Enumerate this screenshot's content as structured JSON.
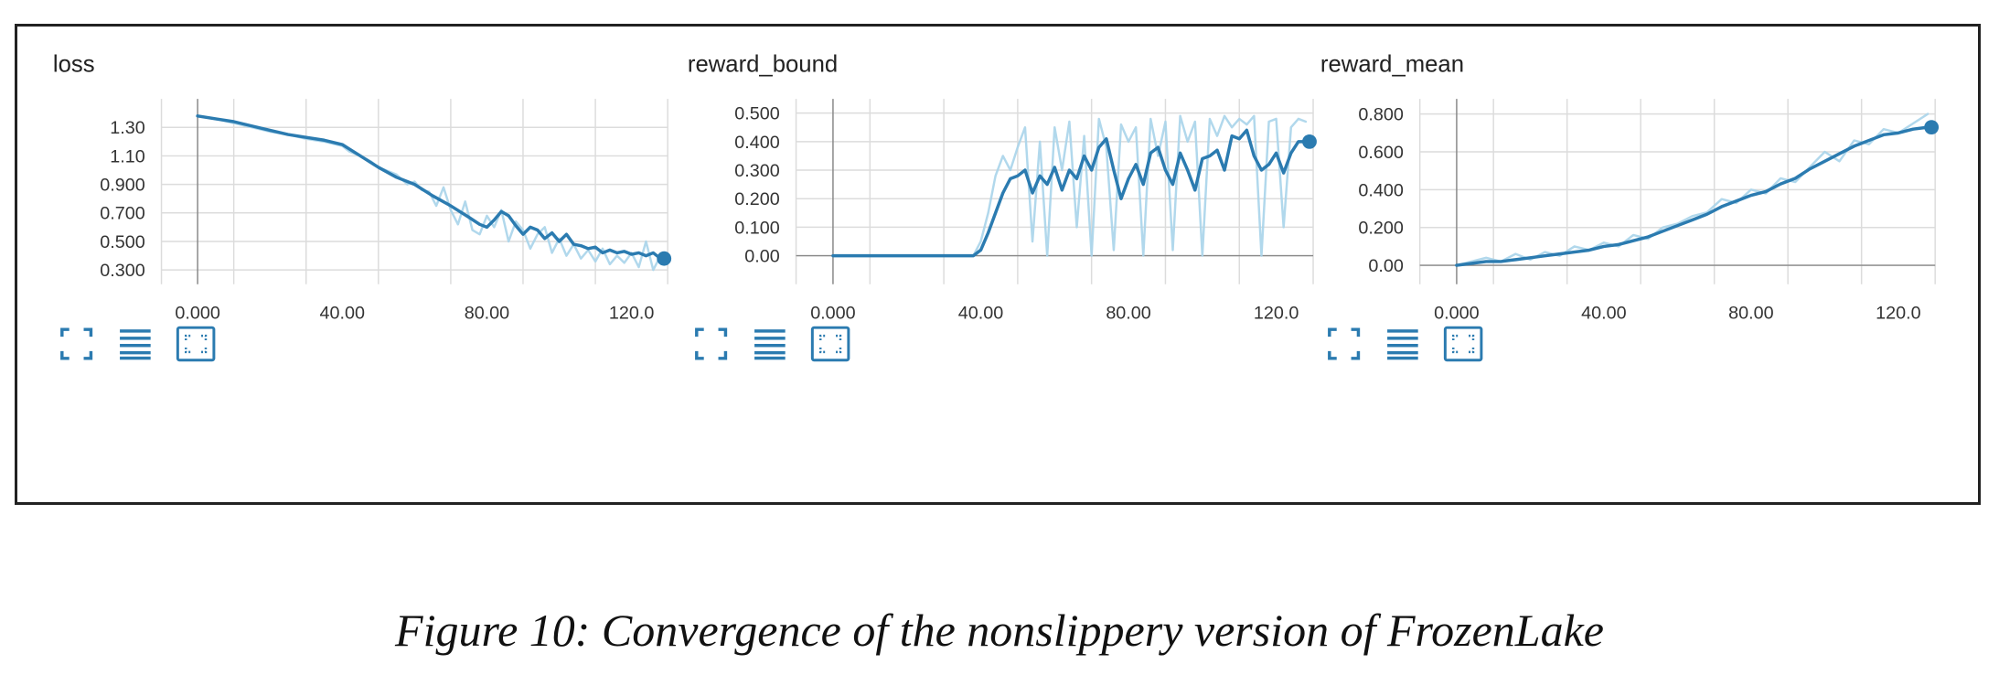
{
  "caption": "Figure 10: Convergence of the nonslippery version of FrozenLake",
  "colors": {
    "line": "#2b7bb0",
    "line_light": "#a8d4ea",
    "grid": "#dcdcdc",
    "axis": "#888888",
    "icon": "#2b7bb0"
  },
  "toolbar_icons": [
    "fullscreen-icon",
    "data-table-icon",
    "fit-domain-icon"
  ],
  "chart_data": [
    {
      "type": "line",
      "title": "loss",
      "xlim": [
        -10,
        130
      ],
      "ylim": [
        0.2,
        1.5
      ],
      "x_ticks": [
        0,
        40,
        80,
        120
      ],
      "x_tick_labels": [
        "0.000",
        "40.00",
        "80.00",
        "120.0"
      ],
      "y_ticks": [
        0.3,
        0.5,
        0.7,
        0.9,
        1.1,
        1.3
      ],
      "y_tick_labels": [
        "0.300",
        "0.500",
        "0.700",
        "0.900",
        "1.10",
        "1.30"
      ],
      "grid": true,
      "series": [
        {
          "style": "raw",
          "x": [
            0,
            5,
            10,
            15,
            20,
            25,
            30,
            35,
            40,
            42,
            45,
            48,
            50,
            52,
            55,
            58,
            60,
            62,
            64,
            66,
            68,
            70,
            72,
            74,
            76,
            78,
            80,
            82,
            84,
            86,
            88,
            90,
            92,
            94,
            96,
            98,
            100,
            102,
            104,
            106,
            108,
            110,
            112,
            114,
            116,
            118,
            120,
            122,
            124,
            126,
            128,
            129
          ],
          "y": [
            1.38,
            1.36,
            1.33,
            1.3,
            1.27,
            1.25,
            1.22,
            1.2,
            1.17,
            1.13,
            1.1,
            1.06,
            1.02,
            1.0,
            0.97,
            0.9,
            0.92,
            0.86,
            0.85,
            0.75,
            0.88,
            0.72,
            0.62,
            0.78,
            0.58,
            0.55,
            0.68,
            0.6,
            0.72,
            0.5,
            0.64,
            0.58,
            0.45,
            0.55,
            0.6,
            0.42,
            0.52,
            0.4,
            0.48,
            0.38,
            0.44,
            0.36,
            0.45,
            0.34,
            0.4,
            0.35,
            0.42,
            0.32,
            0.5,
            0.3,
            0.4,
            0.38
          ]
        },
        {
          "style": "smoothed",
          "x": [
            0,
            5,
            10,
            15,
            20,
            25,
            30,
            35,
            40,
            45,
            50,
            55,
            60,
            65,
            70,
            75,
            78,
            80,
            82,
            84,
            86,
            88,
            90,
            92,
            94,
            96,
            98,
            100,
            102,
            104,
            106,
            108,
            110,
            112,
            114,
            116,
            118,
            120,
            122,
            124,
            126,
            128,
            129
          ],
          "y": [
            1.38,
            1.36,
            1.34,
            1.31,
            1.28,
            1.25,
            1.23,
            1.21,
            1.18,
            1.1,
            1.02,
            0.95,
            0.9,
            0.82,
            0.75,
            0.67,
            0.62,
            0.6,
            0.65,
            0.71,
            0.68,
            0.61,
            0.55,
            0.6,
            0.58,
            0.52,
            0.56,
            0.5,
            0.55,
            0.48,
            0.47,
            0.45,
            0.46,
            0.42,
            0.44,
            0.42,
            0.43,
            0.41,
            0.42,
            0.4,
            0.42,
            0.38,
            0.38
          ]
        }
      ],
      "last_point": [
        129,
        0.38
      ]
    },
    {
      "type": "line",
      "title": "reward_bound",
      "xlim": [
        -10,
        130
      ],
      "ylim": [
        -0.1,
        0.55
      ],
      "x_ticks": [
        0,
        40,
        80,
        120
      ],
      "x_tick_labels": [
        "0.000",
        "40.00",
        "80.00",
        "120.0"
      ],
      "y_ticks": [
        0,
        0.1,
        0.2,
        0.3,
        0.4,
        0.5
      ],
      "y_tick_labels": [
        "0.00",
        "0.100",
        "0.200",
        "0.300",
        "0.400",
        "0.500"
      ],
      "grid": true,
      "series": [
        {
          "style": "raw",
          "x": [
            0,
            10,
            20,
            30,
            38,
            40,
            42,
            44,
            46,
            48,
            50,
            52,
            54,
            56,
            58,
            60,
            62,
            64,
            66,
            68,
            70,
            72,
            74,
            76,
            78,
            80,
            82,
            84,
            86,
            88,
            90,
            92,
            94,
            96,
            98,
            100,
            102,
            104,
            106,
            108,
            110,
            112,
            114,
            116,
            118,
            120,
            122,
            124,
            126,
            128
          ],
          "y": [
            0,
            0,
            0,
            0,
            0,
            0.05,
            0.15,
            0.28,
            0.35,
            0.3,
            0.38,
            0.45,
            0.05,
            0.4,
            0.0,
            0.45,
            0.3,
            0.47,
            0.1,
            0.42,
            0.0,
            0.48,
            0.38,
            0.02,
            0.46,
            0.4,
            0.45,
            0.0,
            0.48,
            0.35,
            0.47,
            0.02,
            0.49,
            0.4,
            0.47,
            0.0,
            0.48,
            0.42,
            0.49,
            0.45,
            0.48,
            0.46,
            0.49,
            0.0,
            0.47,
            0.48,
            0.1,
            0.45,
            0.48,
            0.47
          ]
        },
        {
          "style": "smoothed",
          "x": [
            0,
            10,
            20,
            30,
            38,
            40,
            42,
            44,
            46,
            48,
            50,
            52,
            54,
            56,
            58,
            60,
            62,
            64,
            66,
            68,
            70,
            72,
            74,
            76,
            78,
            80,
            82,
            84,
            86,
            88,
            90,
            92,
            94,
            96,
            98,
            100,
            102,
            104,
            106,
            108,
            110,
            112,
            114,
            116,
            118,
            120,
            122,
            124,
            126,
            128,
            129
          ],
          "y": [
            0,
            0,
            0,
            0,
            0,
            0.02,
            0.08,
            0.15,
            0.22,
            0.27,
            0.28,
            0.3,
            0.22,
            0.28,
            0.25,
            0.31,
            0.23,
            0.3,
            0.27,
            0.35,
            0.3,
            0.38,
            0.41,
            0.3,
            0.2,
            0.27,
            0.32,
            0.25,
            0.36,
            0.38,
            0.3,
            0.25,
            0.36,
            0.3,
            0.23,
            0.34,
            0.35,
            0.37,
            0.3,
            0.42,
            0.41,
            0.44,
            0.35,
            0.3,
            0.32,
            0.36,
            0.29,
            0.36,
            0.4,
            0.4,
            0.4
          ]
        }
      ],
      "last_point": [
        129,
        0.4
      ]
    },
    {
      "type": "line",
      "title": "reward_mean",
      "xlim": [
        -10,
        130
      ],
      "ylim": [
        -0.1,
        0.88
      ],
      "x_ticks": [
        0,
        40,
        80,
        120
      ],
      "x_tick_labels": [
        "0.000",
        "40.00",
        "80.00",
        "120.0"
      ],
      "y_ticks": [
        0,
        0.2,
        0.4,
        0.6,
        0.8
      ],
      "y_tick_labels": [
        "0.00",
        "0.200",
        "0.400",
        "0.600",
        "0.800"
      ],
      "grid": true,
      "series": [
        {
          "style": "raw",
          "x": [
            0,
            4,
            8,
            12,
            16,
            20,
            24,
            28,
            32,
            36,
            40,
            44,
            48,
            52,
            56,
            60,
            64,
            68,
            72,
            76,
            80,
            84,
            88,
            92,
            96,
            100,
            104,
            108,
            112,
            116,
            120,
            124,
            128
          ],
          "y": [
            0.0,
            0.02,
            0.04,
            0.02,
            0.06,
            0.03,
            0.07,
            0.05,
            0.1,
            0.08,
            0.12,
            0.1,
            0.16,
            0.14,
            0.2,
            0.22,
            0.26,
            0.28,
            0.35,
            0.33,
            0.4,
            0.38,
            0.46,
            0.44,
            0.52,
            0.6,
            0.55,
            0.66,
            0.64,
            0.72,
            0.7,
            0.75,
            0.8
          ]
        },
        {
          "style": "smoothed",
          "x": [
            0,
            4,
            8,
            12,
            16,
            20,
            24,
            28,
            32,
            36,
            40,
            44,
            48,
            52,
            56,
            60,
            64,
            68,
            72,
            76,
            80,
            84,
            88,
            92,
            96,
            100,
            104,
            108,
            112,
            116,
            120,
            124,
            128,
            129
          ],
          "y": [
            0.0,
            0.01,
            0.02,
            0.02,
            0.03,
            0.04,
            0.05,
            0.06,
            0.07,
            0.08,
            0.1,
            0.11,
            0.13,
            0.15,
            0.18,
            0.21,
            0.24,
            0.27,
            0.31,
            0.34,
            0.37,
            0.39,
            0.43,
            0.46,
            0.51,
            0.55,
            0.59,
            0.63,
            0.66,
            0.69,
            0.7,
            0.72,
            0.73,
            0.73
          ]
        }
      ],
      "last_point": [
        129,
        0.73
      ]
    }
  ]
}
